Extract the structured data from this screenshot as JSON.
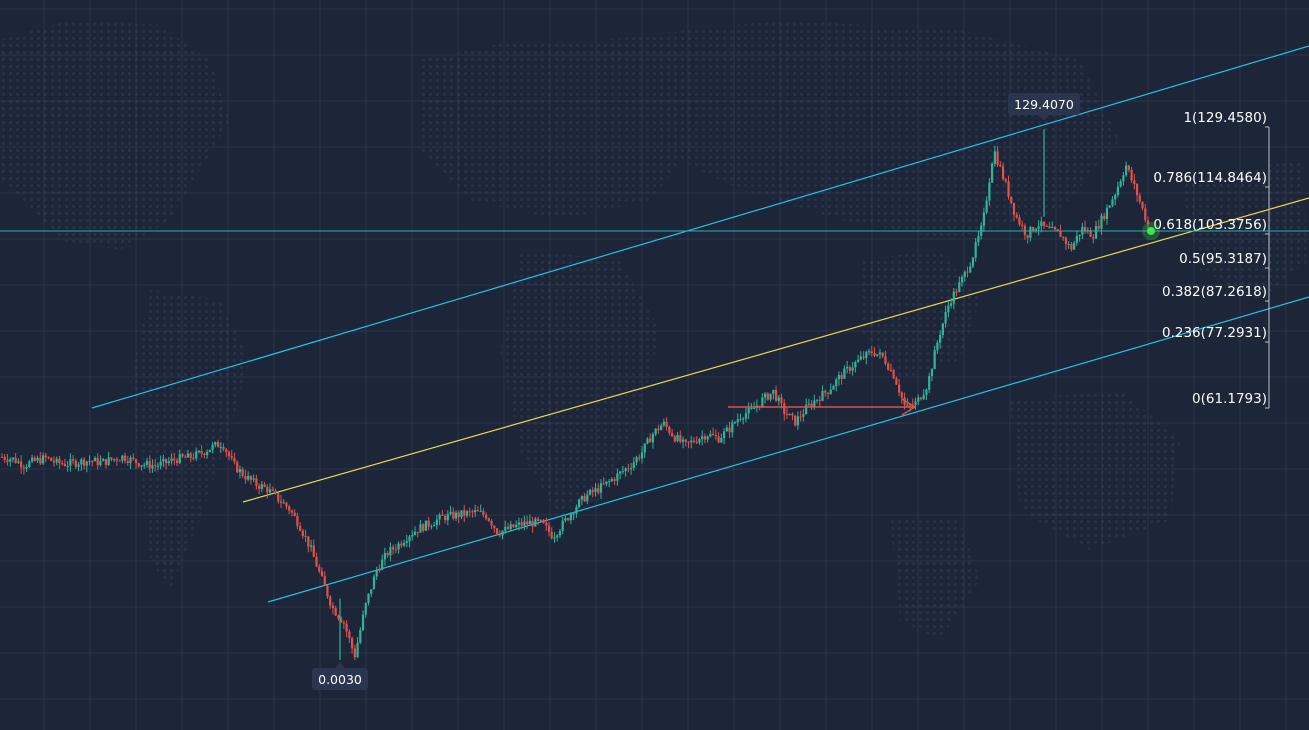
{
  "colors": {
    "background": "#1d2538",
    "grid": "#34405a",
    "channel": "#22c3e0",
    "midline": "#e6d94a",
    "up_candle": "#2fb59a",
    "down_candle": "#e0524a",
    "arrow": "#e0524a",
    "crosshair": "#20b4b0",
    "fib_bracket": "#b9c0cc",
    "marker": "#3fe64a",
    "badge_bg": "#2b3550"
  },
  "price_scale": {
    "min": 0.003,
    "max": 129.407,
    "anchor_price_1": 129.407,
    "anchor_price_2": 0.003
  },
  "high_badge": {
    "text": "129.4070",
    "value": 129.407
  },
  "low_badge": {
    "text": "0.0030",
    "value": 0.003
  },
  "fib_levels": [
    {
      "ratio": 1,
      "text": "1(129.4580)",
      "price": 129.458
    },
    {
      "ratio": 0.786,
      "text": "0.786(114.8464)",
      "price": 114.8464
    },
    {
      "ratio": 0.618,
      "text": "0.618(103.3756)",
      "price": 103.3756
    },
    {
      "ratio": 0.5,
      "text": "0.5(95.3187)",
      "price": 95.3187
    },
    {
      "ratio": 0.382,
      "text": "0.382(87.2618)",
      "price": 87.2618
    },
    {
      "ratio": 0.236,
      "text": "0.236(77.2931)",
      "price": 77.2931
    },
    {
      "ratio": 0,
      "text": "0(61.1793)",
      "price": 61.1793
    }
  ],
  "chart_data": {
    "type": "line",
    "title": "",
    "xlabel": "",
    "ylabel": "",
    "grid": true,
    "ylim": [
      0.003,
      129.458
    ],
    "series": [
      {
        "values": [
          49.5,
          49.0,
          47.5,
          48.5,
          49.2,
          48.0,
          47.8,
          48.3,
          48.6,
          48.1,
          48.9,
          49.6,
          48.4,
          47.6,
          47.4,
          48.2,
          49.1,
          49.4,
          50.3,
          51.8,
          52.9,
          47.6,
          44.9,
          42.9,
          41.8,
          39.4,
          37.1,
          32.9,
          27.2,
          19.8,
          12.7,
          9.3,
          1.0,
          13.3,
          22.0,
          26.1,
          28.2,
          30.7,
          32.3,
          33.5,
          34.8,
          35.2,
          35.6,
          36.0,
          35.2,
          31.1,
          32.0,
          33.0,
          33.5,
          33.2,
          30.2,
          33.5,
          37.2,
          40.0,
          41.5,
          43.2,
          45.3,
          47.4,
          50.3,
          54.9,
          57.7,
          54.5,
          52.2,
          53.8,
          55.1,
          54.0,
          56.3,
          59.6,
          60.7,
          63.4,
          65.4,
          60.4,
          58.0,
          61.4,
          63.8,
          65.8,
          68.9,
          71.4,
          73.5,
          75.2,
          73.7,
          69.1,
          61.3,
          62.7,
          67.2,
          78.7,
          87.4,
          92.0,
          97.7,
          106.1,
          124.5,
          116.5,
          108.2,
          103.6,
          106.3,
          104.7,
          103.9,
          100.2,
          105.2,
          103.6,
          108.4,
          113.7,
          120.6,
          113.6,
          106.1
        ]
      }
    ]
  }
}
